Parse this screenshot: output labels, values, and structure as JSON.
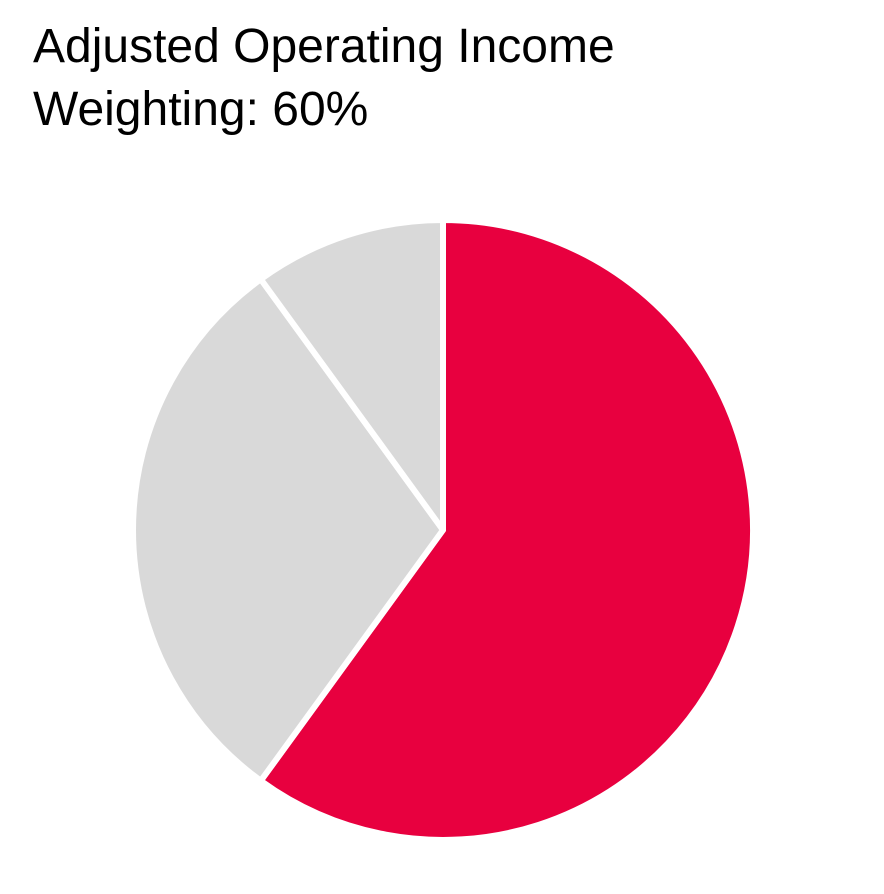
{
  "chart_data": {
    "type": "pie",
    "title": "Adjusted Operating Income",
    "subtitle": "Weighting: 60%",
    "values": [
      60,
      30,
      10
    ],
    "colors": [
      "#e8003f",
      "#d9d9d9",
      "#d9d9d9"
    ],
    "start_angle": 0,
    "direction": "clockwise"
  }
}
